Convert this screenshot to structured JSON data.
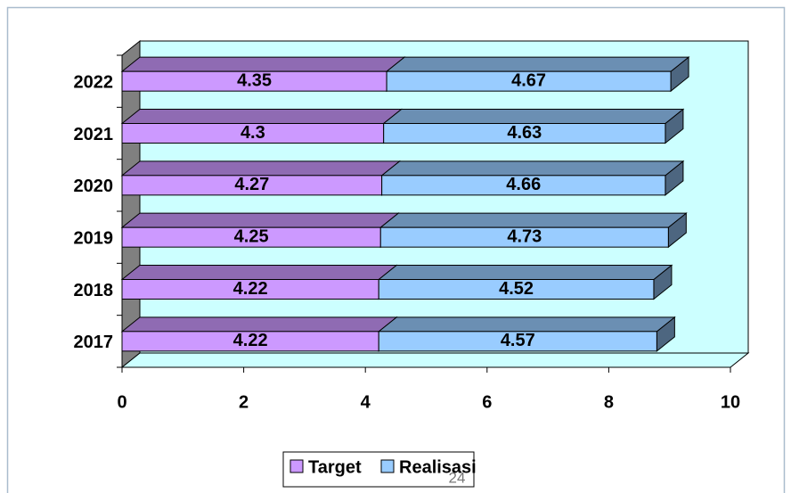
{
  "chart_data": {
    "type": "bar3d_stacked_horizontal",
    "categories": [
      "2017",
      "2018",
      "2019",
      "2020",
      "2021",
      "2022"
    ],
    "series": [
      {
        "name": "Target",
        "color": "#cc99ff",
        "values": [
          4.22,
          4.22,
          4.25,
          4.27,
          4.3,
          4.35
        ]
      },
      {
        "name": "Realisasi",
        "color": "#99ccff",
        "values": [
          4.57,
          4.52,
          4.73,
          4.66,
          4.63,
          4.67
        ]
      }
    ],
    "xlim": [
      0,
      10
    ],
    "xticks": [
      0,
      2,
      4,
      6,
      8,
      10
    ],
    "wall_color": "#ccffff",
    "legend": "bottom",
    "annotations": [
      "24"
    ]
  }
}
